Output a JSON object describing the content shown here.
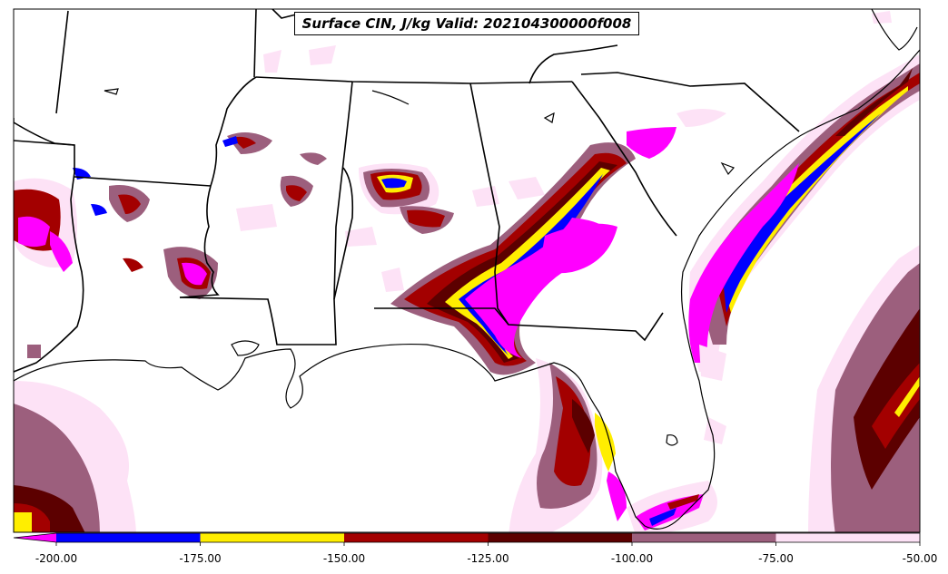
{
  "title": "Surface CIN, J/kg Valid: 202104300000f008",
  "colorbar": {
    "extend": "min",
    "ticks": [
      "-200.00",
      "-175.00",
      "-150.00",
      "-125.00",
      "-100.00",
      "-75.00",
      "-50.00"
    ],
    "bins": [
      {
        "range": [
          -200,
          -175
        ],
        "color": "#0000ff"
      },
      {
        "range": [
          -175,
          -150
        ],
        "color": "#ffee00"
      },
      {
        "range": [
          -150,
          -125
        ],
        "color": "#a30000"
      },
      {
        "range": [
          -125,
          -100
        ],
        "color": "#5c0000"
      },
      {
        "range": [
          -100,
          -75
        ],
        "color": "#9c5f7d"
      },
      {
        "range": [
          -75,
          -50
        ],
        "color": "#fde2f6"
      }
    ],
    "under_color": "#ff00ff"
  },
  "colors": {
    "magenta": "#ff00ff",
    "blue": "#0000ff",
    "yellow": "#ffee00",
    "red": "#a30000",
    "dark_red": "#5c0000",
    "mauve": "#9c5f7d",
    "light_pink": "#fde2f6",
    "boundary": "#000000"
  },
  "map": {
    "region": "Southeastern United States and Gulf of Mexico",
    "variable": "Surface CIN"
  }
}
